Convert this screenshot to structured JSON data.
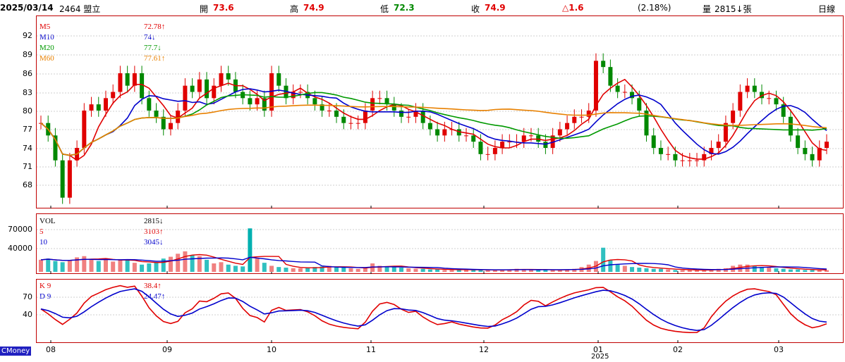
{
  "header": {
    "date": "2025/03/14",
    "ticker": "2464 盟立",
    "open_label": "開",
    "open": "73.6",
    "high_label": "高",
    "high": "74.9",
    "low_label": "低",
    "low": "72.3",
    "close_label": "收",
    "close": "74.9",
    "change": "△1.6",
    "change_pct": "(2.18%)",
    "volume_label": "量",
    "volume": "2815↓張",
    "period": "日線"
  },
  "price_panel": {
    "yticks": [
      "92",
      "89",
      "86",
      "83",
      "80",
      "77",
      "74",
      "71",
      "68"
    ],
    "legend": [
      {
        "label": "M5",
        "value": "72.78↑",
        "color": "#e00000"
      },
      {
        "label": "M10",
        "value": "74↓",
        "color": "#0000cc"
      },
      {
        "label": "M20",
        "value": "77.7↓",
        "color": "#009900"
      },
      {
        "label": "M60",
        "value": "77.61↑",
        "color": "#e88000"
      }
    ]
  },
  "volume_panel": {
    "yticks": [
      "70000",
      "40000"
    ],
    "legend": [
      {
        "label": "VOL",
        "value": "2815↓",
        "color": "#000000"
      },
      {
        "label": "5",
        "value": "3103↑",
        "color": "#e00000"
      },
      {
        "label": "10",
        "value": "3045↓",
        "color": "#0000cc"
      }
    ]
  },
  "kd_panel": {
    "yticks": [
      "70",
      "40"
    ],
    "legend": [
      {
        "label": "K 9",
        "value": "38.4↑",
        "color": "#e00000"
      },
      {
        "label": "D 9",
        "value": "24.47↑",
        "color": "#0000cc"
      }
    ]
  },
  "x_axis": {
    "months": [
      "08",
      "09",
      "10",
      "11",
      "12",
      "01",
      "02",
      "03"
    ],
    "year_label": "2025"
  },
  "badge": "CMoney",
  "chart_data": [
    {
      "type": "candlestick",
      "title": "2464 盟立 日線",
      "ylim": [
        65,
        95
      ],
      "close": [
        78,
        76,
        72,
        66,
        72,
        74,
        80,
        81,
        80,
        82,
        83,
        86,
        84,
        86,
        82,
        80,
        79,
        77,
        78,
        80,
        84,
        83,
        85,
        82,
        84,
        86,
        85,
        83,
        82,
        81,
        82,
        80,
        86,
        84,
        82,
        83,
        83,
        82,
        81,
        80,
        80,
        79,
        78,
        78,
        78,
        80,
        82,
        82,
        81,
        80,
        79,
        79,
        80,
        78,
        77,
        76,
        77,
        77,
        76,
        76,
        75,
        73,
        73,
        74,
        75,
        75,
        75,
        76,
        76,
        75,
        74,
        76,
        77,
        78,
        79,
        79,
        80,
        88,
        87,
        84,
        83,
        83,
        82,
        80,
        76,
        74,
        73,
        73,
        72,
        72,
        72,
        72,
        73,
        74,
        75,
        78,
        80,
        83,
        84,
        83,
        82,
        82,
        81,
        79,
        76,
        74,
        73,
        72,
        74,
        75
      ],
      "colors": {
        "up": "#e00000",
        "down": "#008800"
      },
      "ma": {
        "M5": 72.78,
        "M10": 74,
        "M20": 77.7,
        "M60": 77.61
      }
    },
    {
      "type": "bar",
      "title": "VOL",
      "series": [
        {
          "name": "VOL",
          "values": [
            20000,
            22000,
            18000,
            16000,
            19000,
            24000,
            26000,
            20000,
            18000,
            22000,
            17000,
            21000,
            20000,
            15000,
            12000,
            14000,
            16000,
            22000,
            25000,
            30000,
            34000,
            28000,
            26000,
            20000,
            14000,
            16000,
            12000,
            10000,
            9000,
            72000,
            22000,
            15000,
            10000,
            8000,
            7000,
            6000,
            6000,
            7000,
            8000,
            9000,
            10000,
            8000,
            7000,
            6000,
            5000,
            6000,
            14000,
            10000,
            9000,
            8000,
            7000,
            6000,
            5000,
            5000,
            4000,
            4000,
            3000,
            3000,
            4000,
            4000,
            3000,
            3000,
            3000,
            3000,
            4000,
            4000,
            5000,
            4000,
            3000,
            3000,
            4000,
            3000,
            3000,
            4000,
            5000,
            8000,
            12000,
            18000,
            40000,
            20000,
            12000,
            10000,
            8000,
            7000,
            6000,
            5000,
            5000,
            4000,
            3000,
            3000,
            3000,
            3000,
            3000,
            4000,
            5000,
            6000,
            10000,
            12000,
            12000,
            10000,
            8000,
            8000,
            6000,
            5000,
            4000,
            4000,
            3000,
            3000,
            3000,
            2815
          ]
        }
      ]
    },
    {
      "type": "line",
      "title": "KD",
      "series": [
        {
          "name": "K 9",
          "last": 38.4
        },
        {
          "name": "D 9",
          "last": 24.47
        }
      ]
    }
  ]
}
